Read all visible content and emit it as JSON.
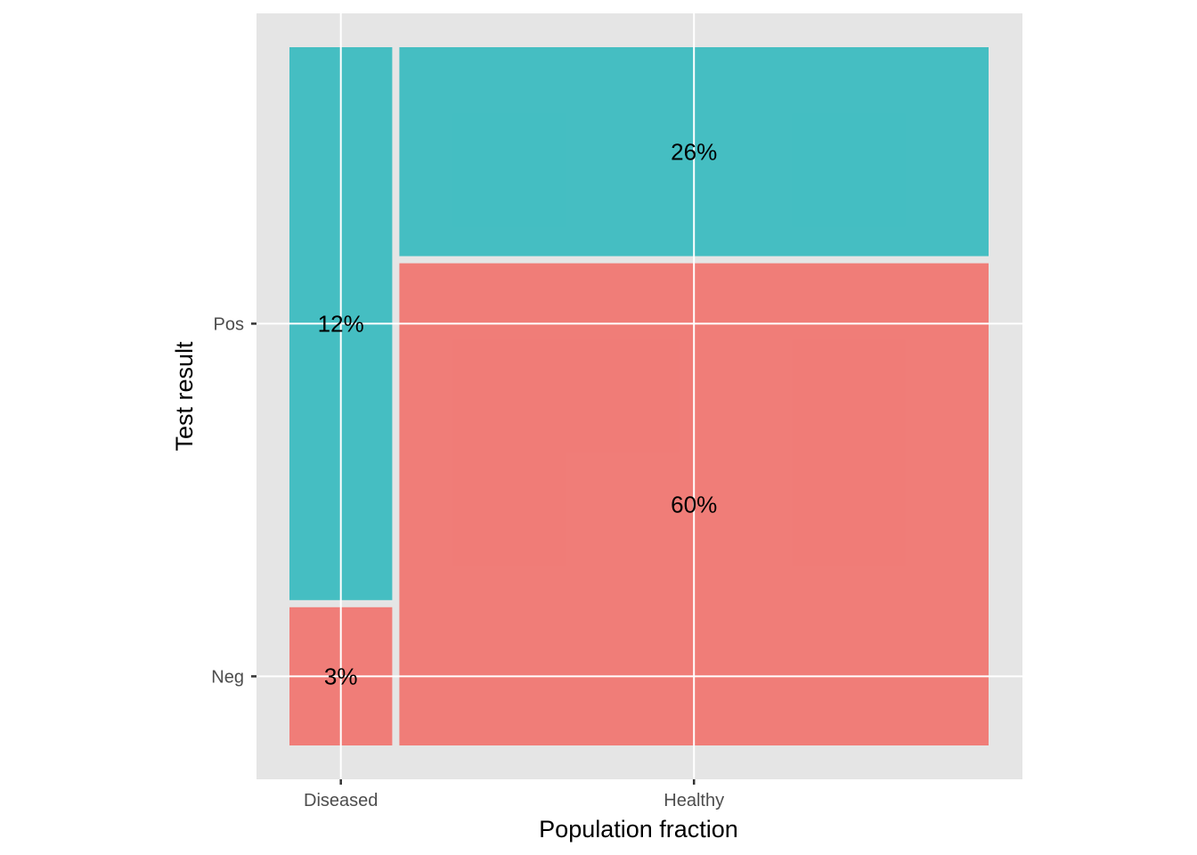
{
  "chart_data": {
    "type": "mosaic",
    "xlabel": "Population fraction",
    "ylabel": "Test result",
    "x_categories": [
      "Diseased",
      "Healthy"
    ],
    "y_categories": [
      "Neg",
      "Pos"
    ],
    "grid": true,
    "legend": "none",
    "colors": {
      "Pos": "#41bdc1",
      "Neg": "#f07a75"
    },
    "cells": [
      {
        "x": "Diseased",
        "y": "Neg",
        "value": 3,
        "label": "3%"
      },
      {
        "x": "Diseased",
        "y": "Pos",
        "value": 12,
        "label": "12%"
      },
      {
        "x": "Healthy",
        "y": "Neg",
        "value": 60,
        "label": "60%"
      },
      {
        "x": "Healthy",
        "y": "Pos",
        "value": 26,
        "label": "26%"
      }
    ]
  }
}
